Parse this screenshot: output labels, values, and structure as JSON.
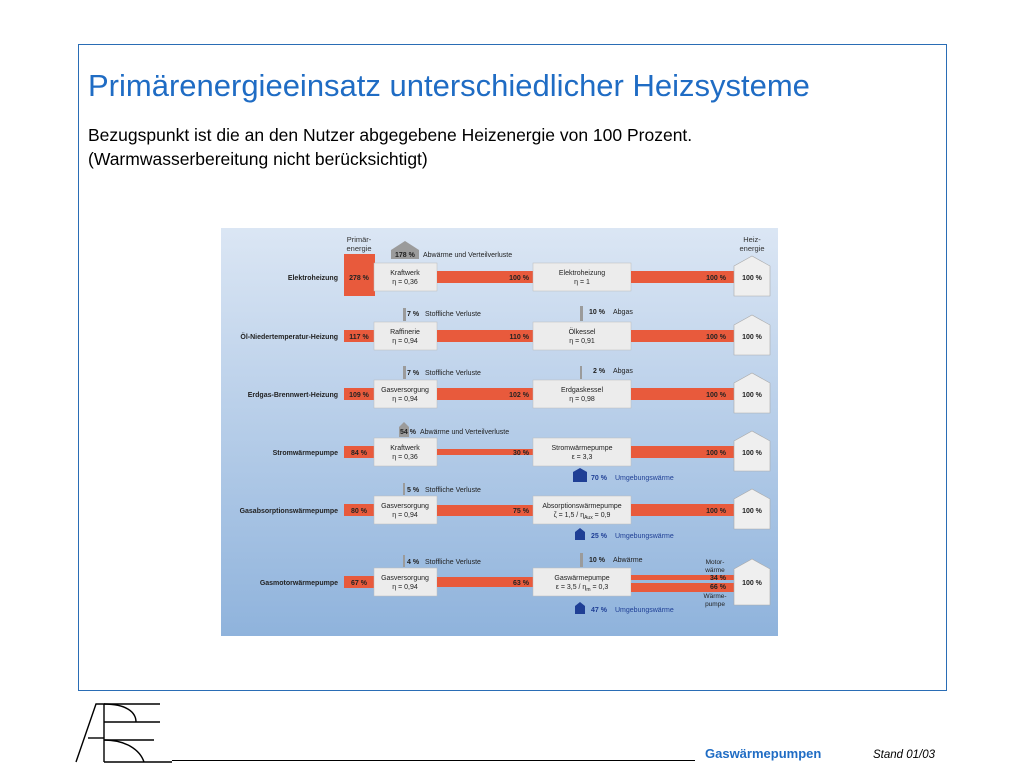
{
  "slide": {
    "title": "Primärenergieeinsatz unterschiedlicher Heizsysteme",
    "subtitle_line1": "Bezugspunkt ist die an den Nutzer abgegebene Heizenergie von 100 Prozent.",
    "subtitle_line2": "(Warmwasserbereitung nicht berücksichtigt)"
  },
  "footer": {
    "brand": "Gaswärmepumpen",
    "stand": "Stand  01/03"
  },
  "diagram": {
    "header_primary_line1": "Primär-",
    "header_primary_line2": "energie",
    "header_heat_line1": "Heiz-",
    "header_heat_line2": "energie",
    "colors": {
      "background_top": "#dbe6f4",
      "background_bottom": "#8fb3dc",
      "bar": "#e85a3c",
      "box": "#ececec",
      "loss": "#9b9b9b",
      "ambient": "#1f3f95"
    },
    "rows": [
      {
        "name": "Elektroheizung",
        "primary": "278 %",
        "loss_value": "178 %",
        "loss_label": "Abwärme und Verteilverluste",
        "stage1_line1": "Kraftwerk",
        "stage1_line2": "η = 0,36",
        "mid_value": "100 %",
        "stage2_line1": "Elektroheizung",
        "stage2_line2": "η = 1",
        "out_value": "100 %",
        "house_value": "100 %"
      },
      {
        "name": "Öl-Niedertemperatur-Heizung",
        "primary": "117 %",
        "loss_value": "7 %",
        "loss_label": "Stoffliche Verluste",
        "stage1_line1": "Raffinerie",
        "stage1_line2": "η = 0,94",
        "mid_value": "110 %",
        "stage2_loss_value": "10 %",
        "stage2_loss_label": "Abgas",
        "stage2_line1": "Ölkessel",
        "stage2_line2": "η = 0,91",
        "out_value": "100 %",
        "house_value": "100 %"
      },
      {
        "name": "Erdgas-Brennwert-Heizung",
        "primary": "109 %",
        "loss_value": "7 %",
        "loss_label": "Stoffliche Verluste",
        "stage1_line1": "Gasversorgung",
        "stage1_line2": "η = 0,94",
        "mid_value": "102 %",
        "stage2_loss_value": "2 %",
        "stage2_loss_label": "Abgas",
        "stage2_line1": "Erdgaskessel",
        "stage2_line2": "η = 0,98",
        "out_value": "100 %",
        "house_value": "100 %"
      },
      {
        "name": "Stromwärmepumpe",
        "primary": "84 %",
        "loss_value": "54 %",
        "loss_label": "Abwärme und Verteilverluste",
        "stage1_line1": "Kraftwerk",
        "stage1_line2": "η = 0,36",
        "mid_value": "30 %",
        "stage2_line1": "Stromwärmepumpe",
        "stage2_line2": "ε = 3,3",
        "out_value": "100 %",
        "house_value": "100 %",
        "ambient_value": "70 %",
        "ambient_label": "Umgebungswärme"
      },
      {
        "name": "Gasabsorptionswärmepumpe",
        "primary": "80 %",
        "loss_value": "5 %",
        "loss_label": "Stoffliche Verluste",
        "stage1_line1": "Gasversorgung",
        "stage1_line2": "η = 0,94",
        "mid_value": "75 %",
        "stage2_line1": "Absorptionswärmepumpe",
        "stage2_line2_a": "ζ = 1,5 / η",
        "stage2_line2_sub": "Aux",
        "stage2_line2_b": " = 0,9",
        "out_value": "100 %",
        "house_value": "100 %",
        "ambient_value": "25 %",
        "ambient_label": "Umgebungswärme"
      },
      {
        "name": "Gasmotorwärmepumpe",
        "primary": "67 %",
        "loss_value": "4 %",
        "loss_label": "Stoffliche Verluste",
        "stage1_line1": "Gasversorgung",
        "stage1_line2": "η = 0,94",
        "mid_value": "63 %",
        "stage2_loss_value": "10 %",
        "stage2_loss_label": "Abwärme",
        "stage2_line1": "Gaswärmepumpe",
        "stage2_line2_a": "ε = 3,5 / η",
        "stage2_line2_sub": "m",
        "stage2_line2_b": " = 0,3",
        "motor_label_line1": "Motor-",
        "motor_label_line2": "wärme",
        "motor_value": "34 %",
        "pump_value": "66 %",
        "pump_label_line1": "Wärme-",
        "pump_label_line2": "pumpe",
        "house_value": "100 %",
        "ambient_value": "47 %",
        "ambient_label": "Umgebungswärme"
      }
    ]
  }
}
